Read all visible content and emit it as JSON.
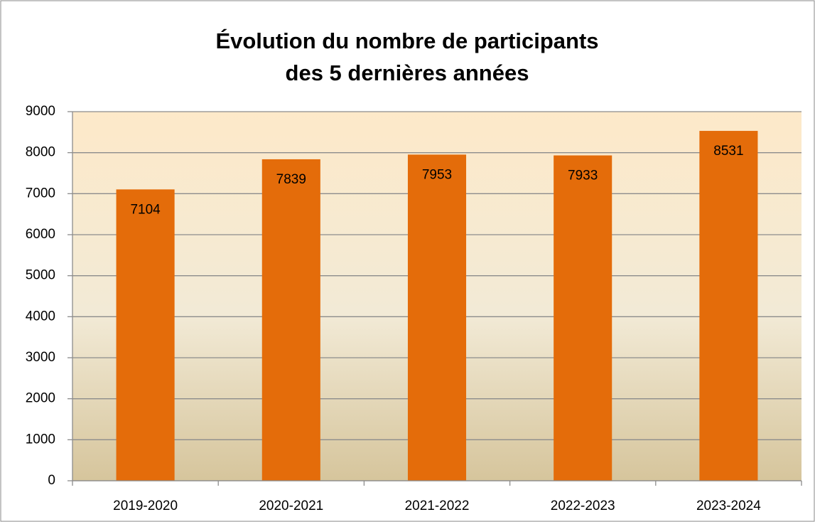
{
  "chart_data": {
    "type": "bar",
    "title": [
      "Évolution du nombre de participants",
      "des 5 dernières années"
    ],
    "categories": [
      "2019-2020",
      "2020-2021",
      "2021-2022",
      "2022-2023",
      "2023-2024"
    ],
    "values": [
      7104,
      7839,
      7953,
      7933,
      8531
    ],
    "color": "#e46c0a",
    "ylim": [
      0,
      9000
    ],
    "yticks": [
      0,
      1000,
      2000,
      3000,
      4000,
      5000,
      6000,
      7000,
      8000,
      9000
    ],
    "grid": true
  }
}
